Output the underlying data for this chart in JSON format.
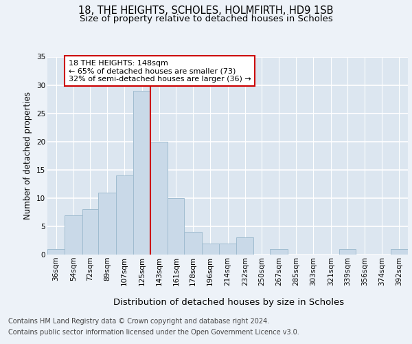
{
  "title1": "18, THE HEIGHTS, SCHOLES, HOLMFIRTH, HD9 1SB",
  "title2": "Size of property relative to detached houses in Scholes",
  "xlabel": "Distribution of detached houses by size in Scholes",
  "ylabel": "Number of detached properties",
  "bar_values": [
    1,
    7,
    8,
    11,
    14,
    29,
    20,
    10,
    4,
    2,
    2,
    3,
    0,
    1,
    0,
    0,
    0,
    1,
    0,
    0,
    1
  ],
  "bin_labels": [
    "36sqm",
    "54sqm",
    "72sqm",
    "89sqm",
    "107sqm",
    "125sqm",
    "143sqm",
    "161sqm",
    "178sqm",
    "196sqm",
    "214sqm",
    "232sqm",
    "250sqm",
    "267sqm",
    "285sqm",
    "303sqm",
    "321sqm",
    "339sqm",
    "356sqm",
    "374sqm",
    "392sqm"
  ],
  "bar_edges": [
    36,
    54,
    72,
    89,
    107,
    125,
    143,
    161,
    178,
    196,
    214,
    232,
    250,
    267,
    285,
    303,
    321,
    339,
    356,
    374,
    392,
    410
  ],
  "bar_color": "#c9d9e8",
  "bar_edge_color": "#a0bcd0",
  "vline_x": 143,
  "vline_color": "#cc0000",
  "annotation_text": "18 THE HEIGHTS: 148sqm\n← 65% of detached houses are smaller (73)\n32% of semi-detached houses are larger (36) →",
  "annotation_box_color": "#ffffff",
  "annotation_box_edge_color": "#cc0000",
  "bg_color": "#edf2f8",
  "plot_bg_color": "#dce6f0",
  "grid_color": "#ffffff",
  "ylim": [
    0,
    35
  ],
  "yticks": [
    0,
    5,
    10,
    15,
    20,
    25,
    30,
    35
  ],
  "footer1": "Contains HM Land Registry data © Crown copyright and database right 2024.",
  "footer2": "Contains public sector information licensed under the Open Government Licence v3.0.",
  "title1_fontsize": 10.5,
  "title2_fontsize": 9.5,
  "xlabel_fontsize": 9.5,
  "ylabel_fontsize": 8.5,
  "tick_fontsize": 7.5,
  "annotation_fontsize": 8,
  "footer_fontsize": 7
}
